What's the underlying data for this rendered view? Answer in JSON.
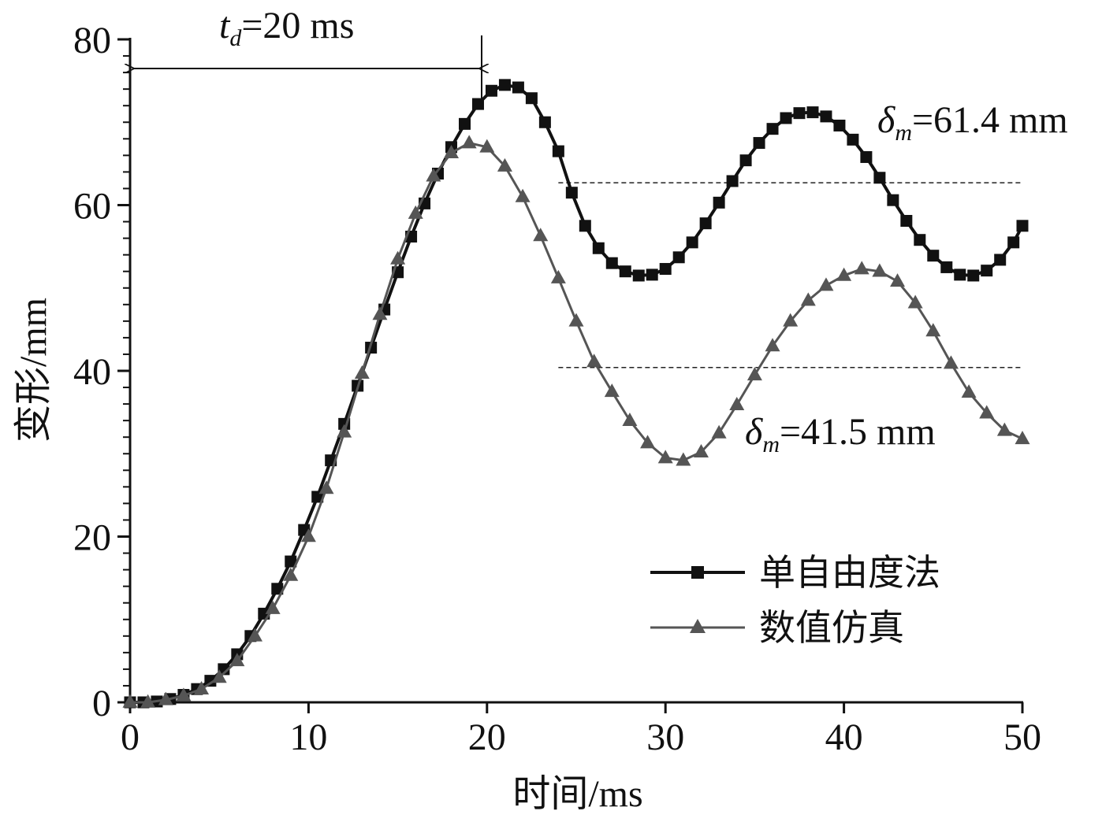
{
  "chart_data": {
    "type": "line",
    "x_label": "时间/ms",
    "y_label": "变形/mm",
    "xlim": [
      0,
      50
    ],
    "ylim": [
      0,
      80
    ],
    "xticks": [
      0,
      10,
      20,
      30,
      40,
      50
    ],
    "yticks": [
      0,
      20,
      40,
      60,
      80
    ],
    "yminor": 2,
    "legend": "lower right",
    "series": [
      {
        "name": "单自由度法",
        "color": "#111111",
        "marker": "square",
        "x": [
          0,
          0.75,
          1.5,
          2.25,
          3,
          3.75,
          4.5,
          5.25,
          6,
          6.75,
          7.5,
          8.25,
          9,
          9.75,
          10.5,
          11.25,
          12,
          12.75,
          13.5,
          14.25,
          15,
          15.75,
          16.5,
          17.25,
          18,
          18.75,
          19.5,
          20.25,
          21,
          21.75,
          22.5,
          23.25,
          24,
          24.75,
          25.5,
          26.25,
          27,
          27.75,
          28.5,
          29.25,
          30,
          30.75,
          31.5,
          32.25,
          33,
          33.75,
          34.5,
          35.25,
          36,
          36.75,
          37.5,
          38.25,
          39,
          39.75,
          40.5,
          41.25,
          42,
          42.75,
          43.5,
          44.25,
          45,
          45.75,
          46.5,
          47.25,
          48,
          48.75,
          49.5,
          50
        ],
        "values": [
          0,
          0,
          0.1,
          0.4,
          0.9,
          1.6,
          2.6,
          4.0,
          5.8,
          8.0,
          10.7,
          13.7,
          17.0,
          20.8,
          24.8,
          29.2,
          33.6,
          38.2,
          42.8,
          47.4,
          51.9,
          56.2,
          60.2,
          63.8,
          67.0,
          69.8,
          72.2,
          73.8,
          74.5,
          74.2,
          72.9,
          70.0,
          66.5,
          61.5,
          57.5,
          54.8,
          53.0,
          52.0,
          51.5,
          51.6,
          52.3,
          53.7,
          55.5,
          57.8,
          60.3,
          62.9,
          65.4,
          67.5,
          69.2,
          70.5,
          71.1,
          71.2,
          70.7,
          69.6,
          67.9,
          65.8,
          63.3,
          60.6,
          58.1,
          55.8,
          53.9,
          52.5,
          51.6,
          51.5,
          52.1,
          53.4,
          55.5,
          57.5
        ]
      },
      {
        "name": "数值仿真",
        "color": "#555555",
        "marker": "triangle",
        "x": [
          0,
          1,
          2,
          3,
          4,
          5,
          6,
          7,
          8,
          9,
          10,
          11,
          12,
          13,
          14,
          15,
          16,
          17,
          18,
          19,
          20,
          21,
          22,
          23,
          24,
          25,
          26,
          27,
          28,
          29,
          30,
          31,
          32,
          33,
          34,
          35,
          36,
          37,
          38,
          39,
          40,
          41,
          42,
          43,
          44,
          45,
          46,
          47,
          48,
          49,
          50
        ],
        "values": [
          0,
          0,
          0.3,
          0.8,
          1.6,
          3.0,
          5.0,
          8.0,
          11.3,
          15.3,
          20.0,
          25.8,
          32.6,
          39.7,
          46.8,
          53.5,
          59.0,
          63.5,
          66.3,
          67.5,
          67.0,
          64.7,
          61.0,
          56.3,
          51.2,
          46.0,
          41.1,
          37.5,
          34.0,
          31.3,
          29.5,
          29.2,
          30.2,
          32.5,
          35.9,
          39.5,
          43.0,
          46.0,
          48.5,
          50.3,
          51.5,
          52.3,
          52.0,
          50.8,
          48.2,
          44.8,
          40.9,
          37.4,
          34.9,
          32.8,
          31.8
        ]
      }
    ],
    "reference_lines": [
      {
        "y": 62.7,
        "x": [
          24,
          50
        ]
      },
      {
        "y": 40.4,
        "x": [
          24,
          50
        ]
      }
    ],
    "span": {
      "x": [
        0,
        19.7
      ]
    },
    "annotations": [
      {
        "symbol": "t",
        "subscript": "d",
        "text": "=20 ms"
      },
      {
        "symbol": "δ",
        "subscript": "m",
        "text": "=61.4 mm"
      },
      {
        "symbol": "δ",
        "subscript": "m",
        "text": "=41.5 mm"
      }
    ]
  }
}
